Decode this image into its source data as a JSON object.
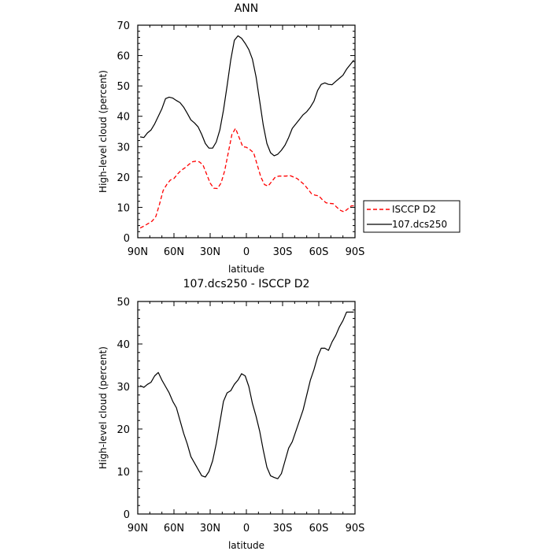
{
  "chart_data": [
    {
      "type": "line",
      "title": "ANN",
      "xlabel": "latitude",
      "ylabel": "High-level cloud (percent)",
      "xlim": [
        90,
        -90
      ],
      "ylim": [
        0,
        70
      ],
      "x_ticks": [
        90,
        60,
        30,
        0,
        -30,
        -60,
        -90
      ],
      "x_tick_labels": [
        "90N",
        "60N",
        "30N",
        "0",
        "30S",
        "60S",
        "90S"
      ],
      "y_ticks": [
        0,
        10,
        20,
        30,
        40,
        50,
        60,
        70
      ],
      "y_tick_labels": [
        "0",
        "10",
        "20",
        "30",
        "40",
        "50",
        "60",
        "70"
      ],
      "legend_position": "right, outside plot",
      "series": [
        {
          "name": "ISCCP D2",
          "color": "#ff0000",
          "dash": "dashed",
          "x": [
            88,
            85,
            82,
            78,
            75,
            72,
            69,
            66,
            63,
            60,
            57,
            54,
            51,
            48,
            45,
            42,
            39,
            36,
            33,
            30,
            27,
            24,
            21,
            18,
            15,
            12,
            9,
            6,
            3,
            0,
            -3,
            -6,
            -9,
            -12,
            -15,
            -18,
            -21,
            -24,
            -27,
            -30,
            -33,
            -36,
            -39,
            -42,
            -45,
            -48,
            -51,
            -54,
            -57,
            -60,
            -63,
            -66,
            -69,
            -72,
            -75,
            -78,
            -81,
            -84,
            -87,
            -89
          ],
          "y": [
            3.2,
            3.8,
            4.5,
            5.5,
            7,
            11,
            15.5,
            17.5,
            19,
            19.5,
            21,
            22.2,
            23,
            24,
            25,
            25.2,
            25,
            24,
            21,
            18,
            16.3,
            16.2,
            18,
            22,
            28,
            34,
            36,
            33,
            30,
            29.8,
            29,
            28,
            24,
            20,
            17.5,
            17,
            18.5,
            20,
            20.3,
            20.3,
            20.3,
            20.5,
            20,
            19.5,
            18.5,
            17.5,
            16,
            14.5,
            14,
            13.8,
            12.5,
            11.5,
            11.3,
            11.2,
            10,
            9,
            8.5,
            9.5,
            10.5,
            10.5
          ]
        },
        {
          "name": "107.dcs250",
          "color": "#000000",
          "dash": "solid",
          "x": [
            88,
            85,
            82,
            79,
            76,
            73,
            70,
            67,
            64,
            61,
            58,
            55,
            52,
            49,
            46,
            43,
            40,
            37,
            34,
            31,
            28,
            25,
            22,
            19,
            16,
            13,
            10,
            7,
            4,
            1,
            -2,
            -5,
            -8,
            -11,
            -14,
            -17,
            -20,
            -23,
            -26,
            -29,
            -32,
            -35,
            -38,
            -41,
            -44,
            -47,
            -50,
            -53,
            -56,
            -59,
            -62,
            -65,
            -68,
            -71,
            -74,
            -77,
            -80,
            -83,
            -86,
            -89
          ],
          "y": [
            33.2,
            33,
            34.5,
            35.5,
            37.5,
            40,
            42.5,
            45.8,
            46.3,
            46,
            45.2,
            44.5,
            43,
            41,
            38.8,
            37.8,
            36.5,
            34,
            31,
            29.5,
            29.5,
            31.5,
            35.5,
            42,
            50,
            58.5,
            65,
            66.5,
            65.7,
            64,
            62,
            58.8,
            53,
            45,
            37,
            31,
            28,
            27,
            27.5,
            28.8,
            30.5,
            33,
            36,
            37.5,
            39,
            40.5,
            41.5,
            43,
            45,
            48.5,
            50.5,
            51,
            50.5,
            50.4,
            51.5,
            52.5,
            53.5,
            55.5,
            57,
            58.5
          ]
        }
      ]
    },
    {
      "type": "line",
      "title": "107.dcs250 - ISCCP D2",
      "xlabel": "latitude",
      "ylabel": "High-level cloud (percent)",
      "xlim": [
        90,
        -90
      ],
      "ylim": [
        0,
        50
      ],
      "x_ticks": [
        90,
        60,
        30,
        0,
        -30,
        -60,
        -90
      ],
      "x_tick_labels": [
        "90N",
        "60N",
        "30N",
        "0",
        "30S",
        "60S",
        "90S"
      ],
      "y_ticks": [
        0,
        10,
        20,
        30,
        40,
        50
      ],
      "y_tick_labels": [
        "0",
        "10",
        "20",
        "30",
        "40",
        "50"
      ],
      "series": [
        {
          "color": "#000000",
          "dash": "solid",
          "x": [
            88,
            85,
            82,
            79,
            76,
            73,
            70,
            67,
            64,
            61,
            58,
            55,
            52,
            49,
            46,
            43,
            40,
            37,
            34,
            31,
            28,
            25,
            22,
            19,
            16,
            13,
            10,
            7,
            4,
            1,
            -2,
            -5,
            -8,
            -11,
            -14,
            -17,
            -20,
            -23,
            -26,
            -29,
            -32,
            -35,
            -38,
            -41,
            -44,
            -47,
            -50,
            -53,
            -56,
            -59,
            -62,
            -65,
            -68,
            -71,
            -74,
            -77,
            -80,
            -83,
            -86,
            -89
          ],
          "y": [
            30.2,
            29.8,
            30.5,
            31,
            32.5,
            33.3,
            31.5,
            30,
            28.5,
            26.5,
            25,
            22,
            19,
            16.5,
            13.5,
            12,
            10.5,
            9,
            8.7,
            10,
            12.5,
            16.5,
            21.5,
            26.5,
            28.5,
            29,
            30.5,
            31.5,
            33,
            32.5,
            30,
            26,
            23,
            19.5,
            15,
            11,
            9,
            8.6,
            8.3,
            9.5,
            12.5,
            15.5,
            17,
            19.5,
            22,
            24.5,
            28,
            31.5,
            34,
            37,
            39,
            39,
            38.5,
            40.5,
            42,
            44,
            45.5,
            47.5,
            47.5,
            47.5
          ]
        }
      ]
    }
  ]
}
